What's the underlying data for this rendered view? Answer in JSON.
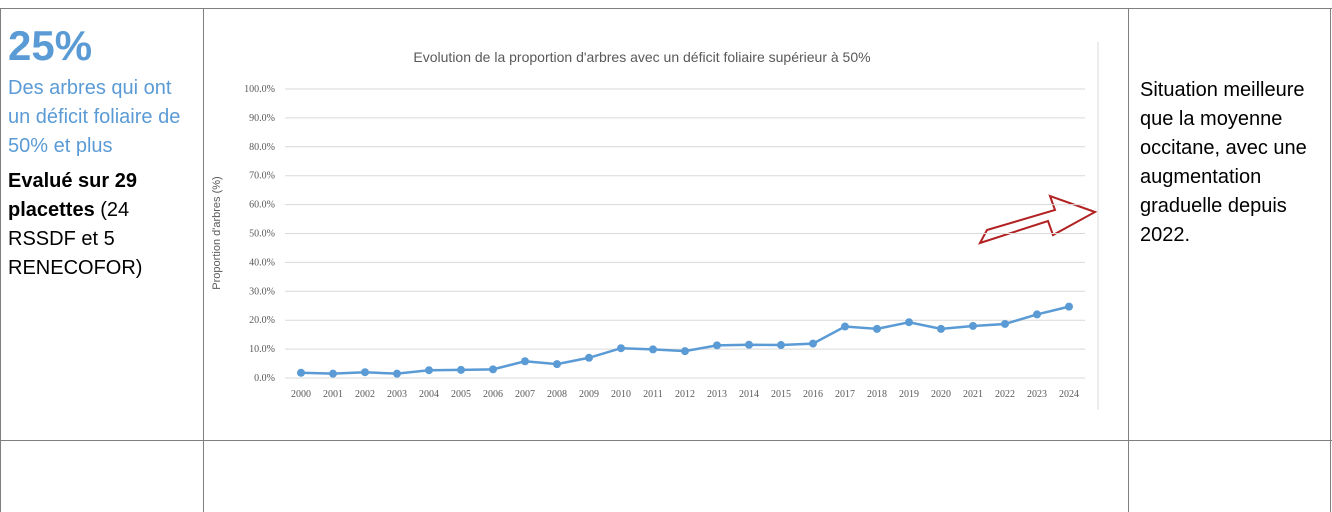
{
  "left": {
    "headline": "25%",
    "description": "Des arbres qui ont un déficit foliaire de 50% et plus",
    "basis_bold": "Evalué sur 29 placettes",
    "basis_rest": " (24 RSSDF et 5 RENECOFOR)"
  },
  "chart_data": {
    "type": "line",
    "title": "Evolution de la proportion d'arbres avec un déficit foliaire supérieur à 50%",
    "ylabel": "Proportion d'arbres (%)",
    "categories": [
      "2000",
      "2001",
      "2002",
      "2003",
      "2004",
      "2005",
      "2006",
      "2007",
      "2008",
      "2009",
      "2010",
      "2011",
      "2012",
      "2013",
      "2014",
      "2015",
      "2016",
      "2017",
      "2018",
      "2019",
      "2020",
      "2021",
      "2022",
      "2023",
      "2024"
    ],
    "series": [
      {
        "color": "#5b9bd5",
        "values": [
          1.8,
          1.5,
          2.0,
          1.5,
          2.7,
          2.8,
          3.0,
          5.8,
          4.8,
          7.0,
          10.3,
          9.9,
          9.3,
          11.3,
          11.5,
          11.4,
          11.9,
          17.8,
          17.0,
          19.3,
          17.0,
          18.0,
          18.7,
          22.0,
          24.7
        ]
      }
    ],
    "ylim": [
      0,
      100
    ],
    "yticks": [
      {
        "value": 0,
        "label": "0.0%"
      },
      {
        "value": 10,
        "label": "10.0%"
      },
      {
        "value": 20,
        "label": "20.0%"
      },
      {
        "value": 30,
        "label": "30.0%"
      },
      {
        "value": 40,
        "label": "40.0%"
      },
      {
        "value": 50,
        "label": "50.0%"
      },
      {
        "value": 60,
        "label": "60.0%"
      },
      {
        "value": 70,
        "label": "70.0%"
      },
      {
        "value": 80,
        "label": "80.0%"
      },
      {
        "value": 90,
        "label": "90.0%"
      },
      {
        "value": 100,
        "label": "100.0%"
      }
    ],
    "grid": true
  },
  "right": {
    "comment": "Situation meilleure que la moyenne occitane, avec une augmentation graduelle depuis 2022."
  }
}
